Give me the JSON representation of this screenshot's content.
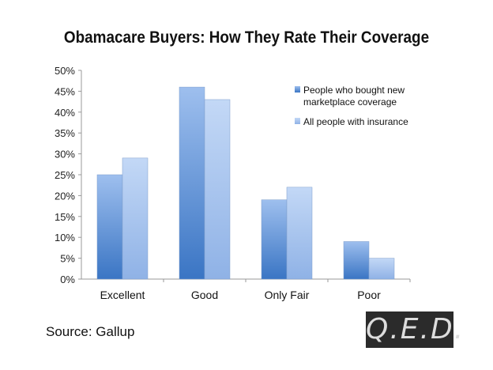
{
  "chart_data": {
    "type": "bar",
    "title": "Obamacare Buyers: How They Rate Their Coverage",
    "categories": [
      "Excellent",
      "Good",
      "Only Fair",
      "Poor"
    ],
    "series": [
      {
        "name": "People who bought new marketplace coverage",
        "name_lines": [
          "People who bought new",
          "marketplace coverage"
        ],
        "values": [
          25,
          46,
          19,
          9
        ],
        "color": "#3f7cc8"
      },
      {
        "name": "All people with insurance",
        "name_lines": [
          "All people with insurance"
        ],
        "values": [
          29,
          43,
          22,
          5
        ],
        "color": "#a9c6ef"
      }
    ],
    "ylim": [
      0,
      50
    ],
    "yticks": [
      "0%",
      "5%",
      "10%",
      "15%",
      "20%",
      "25%",
      "30%",
      "35%",
      "40%",
      "45%",
      "50%"
    ],
    "grid": false,
    "legend": "top-right"
  },
  "source": "Source: Gallup",
  "logo": "Q.E.D."
}
